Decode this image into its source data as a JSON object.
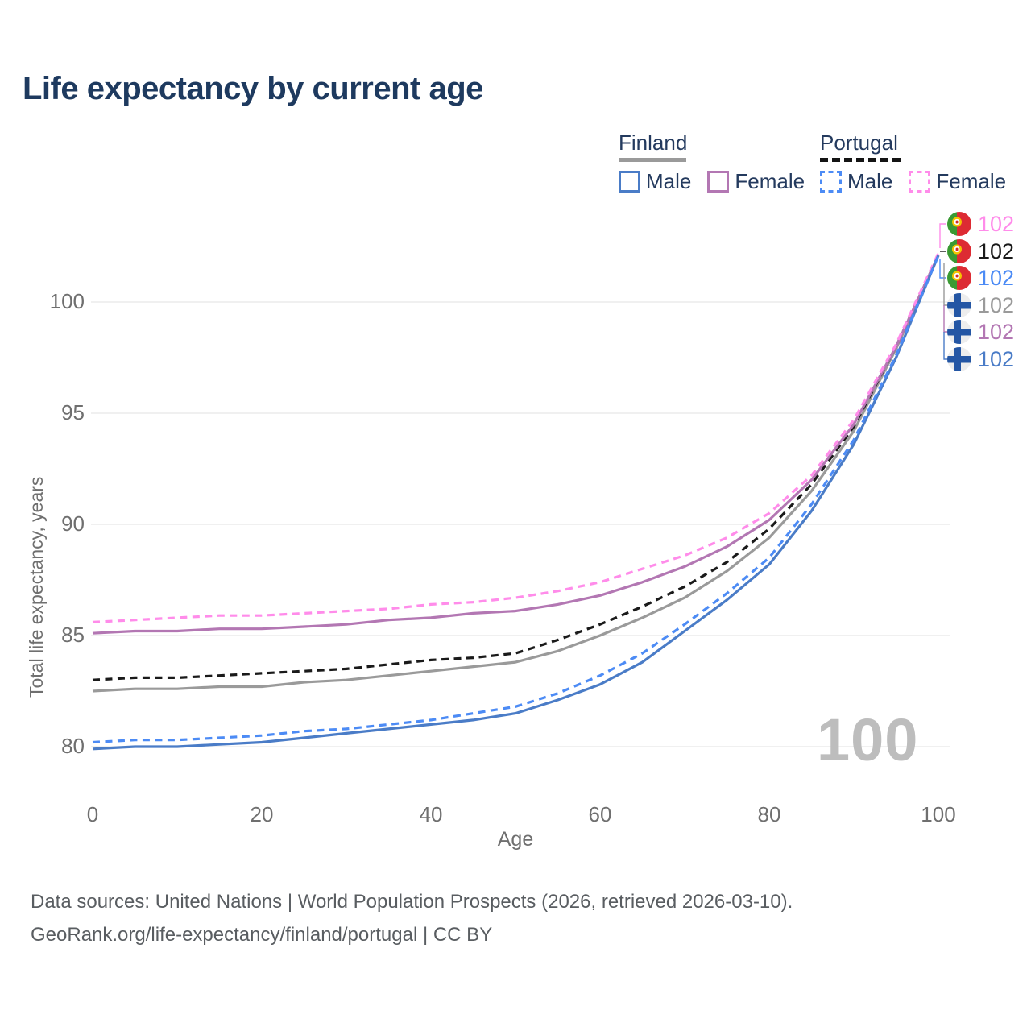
{
  "title": "Life expectancy by current age",
  "watermark": "100",
  "legend": {
    "groups": [
      {
        "country": "Finland",
        "line_style": "solid",
        "items": [
          {
            "label": "Male",
            "color": "#4a7cc7",
            "style": "solid"
          },
          {
            "label": "Female",
            "color": "#b377b3",
            "style": "solid"
          }
        ]
      },
      {
        "country": "Portugal",
        "line_style": "dashed",
        "items": [
          {
            "label": "Male",
            "color": "#4c8bf5",
            "style": "dashed"
          },
          {
            "label": "Female",
            "color": "#ff8cea",
            "style": "dashed"
          }
        ]
      }
    ]
  },
  "colors": {
    "title_text": "#1e3a5f",
    "legend_text": "#243a5e",
    "finland_male": "#4a7cc7",
    "finland_female": "#b377b3",
    "finland_total": "#9a9a9a",
    "portugal_male": "#4c8bf5",
    "portugal_female": "#ff8cea",
    "portugal_total": "#1a1a1a",
    "gridline": "#ececec",
    "axis_text": "#6f6f6f",
    "watermark": "#bdbdbd"
  },
  "chart_data": {
    "type": "line",
    "title": "Life expectancy by current age",
    "xlabel": "Age",
    "ylabel": "Total life expectancy, years",
    "xlim": [
      0,
      100
    ],
    "ylim": [
      78.5,
      102.5
    ],
    "x_ticks": [
      0,
      20,
      40,
      60,
      80,
      100
    ],
    "y_ticks": [
      80,
      85,
      90,
      95,
      100
    ],
    "grid": "horizontal-only",
    "legend_position": "top-right",
    "x": [
      0,
      5,
      10,
      15,
      20,
      25,
      30,
      35,
      40,
      45,
      50,
      55,
      60,
      65,
      70,
      75,
      80,
      85,
      90,
      95,
      100
    ],
    "series": [
      {
        "name": "Finland Total",
        "country": "Finland",
        "sex": "All",
        "style": "solid",
        "color": "#9a9a9a",
        "values": [
          82.5,
          82.6,
          82.6,
          82.7,
          82.7,
          82.9,
          83.0,
          83.2,
          83.4,
          83.6,
          83.8,
          84.3,
          85.0,
          85.8,
          86.7,
          87.9,
          89.4,
          91.5,
          94.2,
          97.9,
          102.1
        ]
      },
      {
        "name": "Portugal Total",
        "country": "Portugal",
        "sex": "All",
        "style": "dashed",
        "color": "#1a1a1a",
        "values": [
          83.0,
          83.1,
          83.1,
          83.2,
          83.3,
          83.4,
          83.5,
          83.7,
          83.9,
          84.0,
          84.2,
          84.8,
          85.5,
          86.3,
          87.2,
          88.3,
          89.8,
          91.8,
          94.4,
          98.0,
          102.1
        ]
      },
      {
        "name": "Finland Female",
        "country": "Finland",
        "sex": "Female",
        "style": "solid",
        "color": "#b377b3",
        "values": [
          85.1,
          85.2,
          85.2,
          85.3,
          85.3,
          85.4,
          85.5,
          85.7,
          85.8,
          86.0,
          86.1,
          86.4,
          86.8,
          87.4,
          88.1,
          89.0,
          90.2,
          92.0,
          94.5,
          98.0,
          102.1
        ]
      },
      {
        "name": "Portugal Female",
        "country": "Portugal",
        "sex": "Female",
        "style": "dashed",
        "color": "#ff8cea",
        "values": [
          85.6,
          85.7,
          85.8,
          85.9,
          85.9,
          86.0,
          86.1,
          86.2,
          86.4,
          86.5,
          86.7,
          87.0,
          87.4,
          88.0,
          88.6,
          89.4,
          90.5,
          92.2,
          94.7,
          98.1,
          102.2
        ]
      },
      {
        "name": "Finland Male",
        "country": "Finland",
        "sex": "Male",
        "style": "solid",
        "color": "#4a7cc7",
        "values": [
          79.9,
          80.0,
          80.0,
          80.1,
          80.2,
          80.4,
          80.6,
          80.8,
          81.0,
          81.2,
          81.5,
          82.1,
          82.8,
          83.8,
          85.2,
          86.6,
          88.2,
          90.6,
          93.6,
          97.5,
          102.1
        ]
      },
      {
        "name": "Portugal Male",
        "country": "Portugal",
        "sex": "Male",
        "style": "dashed",
        "color": "#4c8bf5",
        "values": [
          80.2,
          80.3,
          80.3,
          80.4,
          80.5,
          80.7,
          80.8,
          81.0,
          81.2,
          81.5,
          81.8,
          82.4,
          83.2,
          84.2,
          85.5,
          86.9,
          88.5,
          90.9,
          93.8,
          97.6,
          102.1
        ]
      }
    ]
  },
  "end_labels": [
    {
      "series": "Portugal Female",
      "flag": "portugal",
      "value": "102",
      "color": "#ff8cea"
    },
    {
      "series": "Portugal Total",
      "flag": "portugal",
      "value": "102",
      "color": "#1a1a1a"
    },
    {
      "series": "Portugal Male",
      "flag": "portugal",
      "value": "102",
      "color": "#4c8bf5"
    },
    {
      "series": "Finland Total",
      "flag": "finland",
      "value": "102",
      "color": "#9a9a9a"
    },
    {
      "series": "Finland Female",
      "flag": "finland",
      "value": "102",
      "color": "#b377b3"
    },
    {
      "series": "Finland Male",
      "flag": "finland",
      "value": "102",
      "color": "#4a7cc7"
    }
  ],
  "footer": {
    "line1": "Data sources: United Nations | World Population Prospects (2026, retrieved 2026-03-10).",
    "line2": "GeoRank.org/life-expectancy/finland/portugal | CC BY"
  }
}
